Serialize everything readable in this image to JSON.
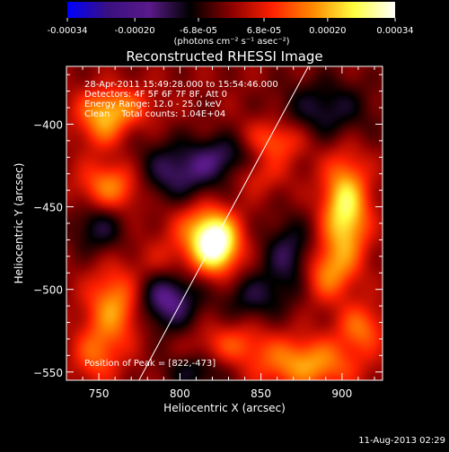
{
  "colorbar": {
    "ticks": [
      "-0.00034",
      "-0.00020",
      "-6.8e-05",
      "6.8e-05",
      "0.00020",
      "0.00034"
    ],
    "tick_values": [
      -0.00034,
      -0.0002,
      -6.8e-05,
      6.8e-05,
      0.0002,
      0.00034
    ],
    "range": [
      -0.00034,
      0.00034
    ],
    "unit_label": "(photons cm⁻² s⁻¹ asec⁻²)",
    "stops": [
      "#0000ff",
      "#3a1080",
      "#5a1a8a",
      "#000000",
      "#8a0000",
      "#ff2000",
      "#ff8a00",
      "#ffff40",
      "#ffffff"
    ]
  },
  "chart_data": {
    "type": "heatmap",
    "title": "Reconstructed RHESSI Image",
    "xlabel": "Heliocentric X (arcsec)",
    "ylabel": "Heliocentric Y (arcsec)",
    "xlim": [
      730,
      925
    ],
    "ylim": [
      -555,
      -365
    ],
    "xticks": [
      750,
      800,
      850,
      900
    ],
    "yticks": [
      -400,
      -450,
      -500,
      -550
    ],
    "xtick_labels": [
      "750",
      "800",
      "850",
      "900"
    ],
    "ytick_labels": [
      "−400",
      "−450",
      "−500",
      "−550"
    ],
    "annotations": [
      "28-Apr-2011 15:49:28.000 to 15:54:46.000",
      "Detectors: 4F 5F 6F 7F 8F, Att 0",
      "Energy Range: 12.0 - 25.0 keV",
      "Clean    Total counts: 1.04E+04"
    ],
    "peak_label": "Position of Peak = [822,-473]",
    "peak": [
      822,
      -473
    ],
    "limb_line": [
      [
        772,
        -560
      ],
      [
        882,
        -360
      ]
    ],
    "sources": [
      {
        "x": 822,
        "y": -473,
        "amp": 1.0,
        "sx": 10,
        "sy": 12
      },
      {
        "x": 812,
        "y": -462,
        "amp": 0.35,
        "sx": 14,
        "sy": 14
      },
      {
        "x": 902,
        "y": -452,
        "amp": 0.8,
        "sx": 10,
        "sy": 22
      },
      {
        "x": 890,
        "y": -490,
        "amp": 0.45,
        "sx": 11,
        "sy": 12
      },
      {
        "x": 760,
        "y": -390,
        "amp": 0.45,
        "sx": 16,
        "sy": 9
      },
      {
        "x": 752,
        "y": -402,
        "amp": 0.35,
        "sx": 10,
        "sy": 10
      },
      {
        "x": 758,
        "y": -438,
        "amp": 0.55,
        "sx": 14,
        "sy": 11
      },
      {
        "x": 760,
        "y": -510,
        "amp": 0.55,
        "sx": 12,
        "sy": 16
      },
      {
        "x": 748,
        "y": -540,
        "amp": 0.35,
        "sx": 10,
        "sy": 12
      },
      {
        "x": 858,
        "y": -410,
        "amp": 0.42,
        "sx": 14,
        "sy": 9
      },
      {
        "x": 845,
        "y": -430,
        "amp": 0.3,
        "sx": 14,
        "sy": 9
      },
      {
        "x": 878,
        "y": -545,
        "amp": 0.55,
        "sx": 22,
        "sy": 11
      },
      {
        "x": 912,
        "y": -523,
        "amp": 0.4,
        "sx": 10,
        "sy": 10
      },
      {
        "x": 832,
        "y": -533,
        "amp": 0.3,
        "sx": 16,
        "sy": 9
      },
      {
        "x": 790,
        "y": -485,
        "amp": 0.22,
        "sx": 12,
        "sy": 10
      },
      {
        "x": 800,
        "y": -430,
        "amp": -0.45,
        "sx": 22,
        "sy": 14
      },
      {
        "x": 832,
        "y": -420,
        "amp": -0.35,
        "sx": 14,
        "sy": 10
      },
      {
        "x": 792,
        "y": -505,
        "amp": -0.55,
        "sx": 14,
        "sy": 14
      },
      {
        "x": 868,
        "y": -480,
        "amp": -0.4,
        "sx": 12,
        "sy": 16
      },
      {
        "x": 750,
        "y": -462,
        "amp": -0.35,
        "sx": 12,
        "sy": 12
      },
      {
        "x": 890,
        "y": -392,
        "amp": -0.35,
        "sx": 20,
        "sy": 14
      },
      {
        "x": 845,
        "y": -505,
        "amp": -0.3,
        "sx": 14,
        "sy": 10
      },
      {
        "x": 810,
        "y": -550,
        "amp": -0.3,
        "sx": 14,
        "sy": 8
      }
    ]
  },
  "footer": {
    "date": "11-Aug-2013 02:29"
  }
}
